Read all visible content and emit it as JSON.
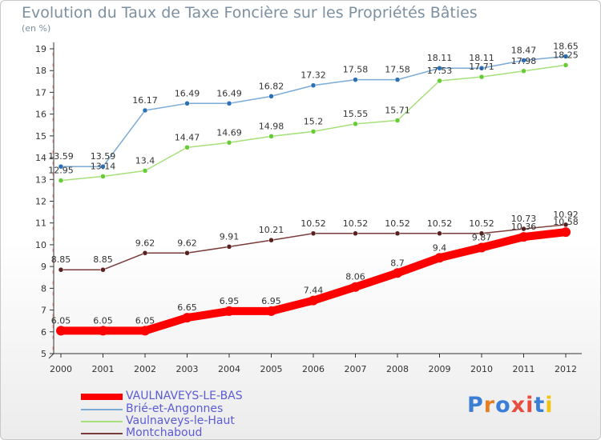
{
  "header": {
    "title": "Evolution du Taux de Taxe Foncière sur les Propriétés Bâties",
    "unit": "(en %)"
  },
  "logo": {
    "text": "Proxiti",
    "letters": [
      "P",
      "r",
      "o",
      "x",
      "i",
      "t",
      "i"
    ],
    "colors": [
      "#3a7fd5",
      "#e67e22",
      "#3a7fd5",
      "#e74c3c",
      "#e74c3c",
      "#3a7fd5",
      "#f1c40f"
    ]
  },
  "chart_data": {
    "type": "line",
    "x": [
      "2000",
      "2001",
      "2002",
      "2003",
      "2004",
      "2005",
      "2006",
      "2007",
      "2008",
      "2009",
      "2010",
      "2011",
      "2012"
    ],
    "ylim": [
      5,
      19
    ],
    "yticks": [
      "5",
      "6",
      "7",
      "8",
      "9",
      "10",
      "11",
      "12",
      "13",
      "14",
      "15",
      "16",
      "17",
      "18",
      "19"
    ],
    "grid": false,
    "legend_position": "bottom-left",
    "series": [
      {
        "name": "VAULNAVEYS-LE-BAS",
        "color": "#ff0000",
        "marker": "#ff0000",
        "width": 10,
        "values": [
          6.05,
          6.05,
          6.05,
          6.65,
          6.95,
          6.95,
          7.44,
          8.06,
          8.7,
          9.4,
          9.87,
          10.36,
          10.58
        ],
        "labels": [
          "6.05",
          "6.05",
          "6.05",
          "6.65",
          "6.95",
          "6.95",
          "7.44",
          "8.06",
          "8.7",
          "9.4",
          "9.87",
          "10.36",
          "10.58"
        ]
      },
      {
        "name": "Brié-et-Angonnes",
        "color": "#7aaad7",
        "marker": "#2b6fb5",
        "width": 1.5,
        "values": [
          13.59,
          13.59,
          16.17,
          16.49,
          16.49,
          16.82,
          17.32,
          17.58,
          17.58,
          18.11,
          18.11,
          18.47,
          18.65
        ],
        "labels": [
          "13.59",
          "13.59",
          "16.17",
          "16.49",
          "16.49",
          "16.82",
          "17.32",
          "17.58",
          "17.58",
          "18.11",
          "18.11",
          "18.47",
          "18.65"
        ]
      },
      {
        "name": "Vaulnaveys-le-Haut",
        "color": "#a6e07a",
        "marker": "#66cc33",
        "width": 1.5,
        "values": [
          12.95,
          13.14,
          13.4,
          14.47,
          14.69,
          14.98,
          15.2,
          15.55,
          15.71,
          17.53,
          17.71,
          17.98,
          18.25
        ],
        "labels": [
          "12.95",
          "13.14",
          "13.4",
          "14.47",
          "14.69",
          "14.98",
          "15.2",
          "15.55",
          "15.71",
          "17.53",
          "17.71",
          "17.98",
          "18.25"
        ]
      },
      {
        "name": "Montchaboud",
        "color": "#7a3b3b",
        "marker": "#5a1f1f",
        "width": 1.5,
        "values": [
          8.85,
          8.85,
          9.62,
          9.62,
          9.91,
          10.21,
          10.52,
          10.52,
          10.52,
          10.52,
          10.52,
          10.73,
          10.92
        ],
        "labels": [
          "8.85",
          "8.85",
          "9.62",
          "9.62",
          "9.91",
          "10.21",
          "10.52",
          "10.52",
          "10.52",
          "10.52",
          "10.52",
          "10.73",
          "10.92"
        ]
      }
    ]
  }
}
